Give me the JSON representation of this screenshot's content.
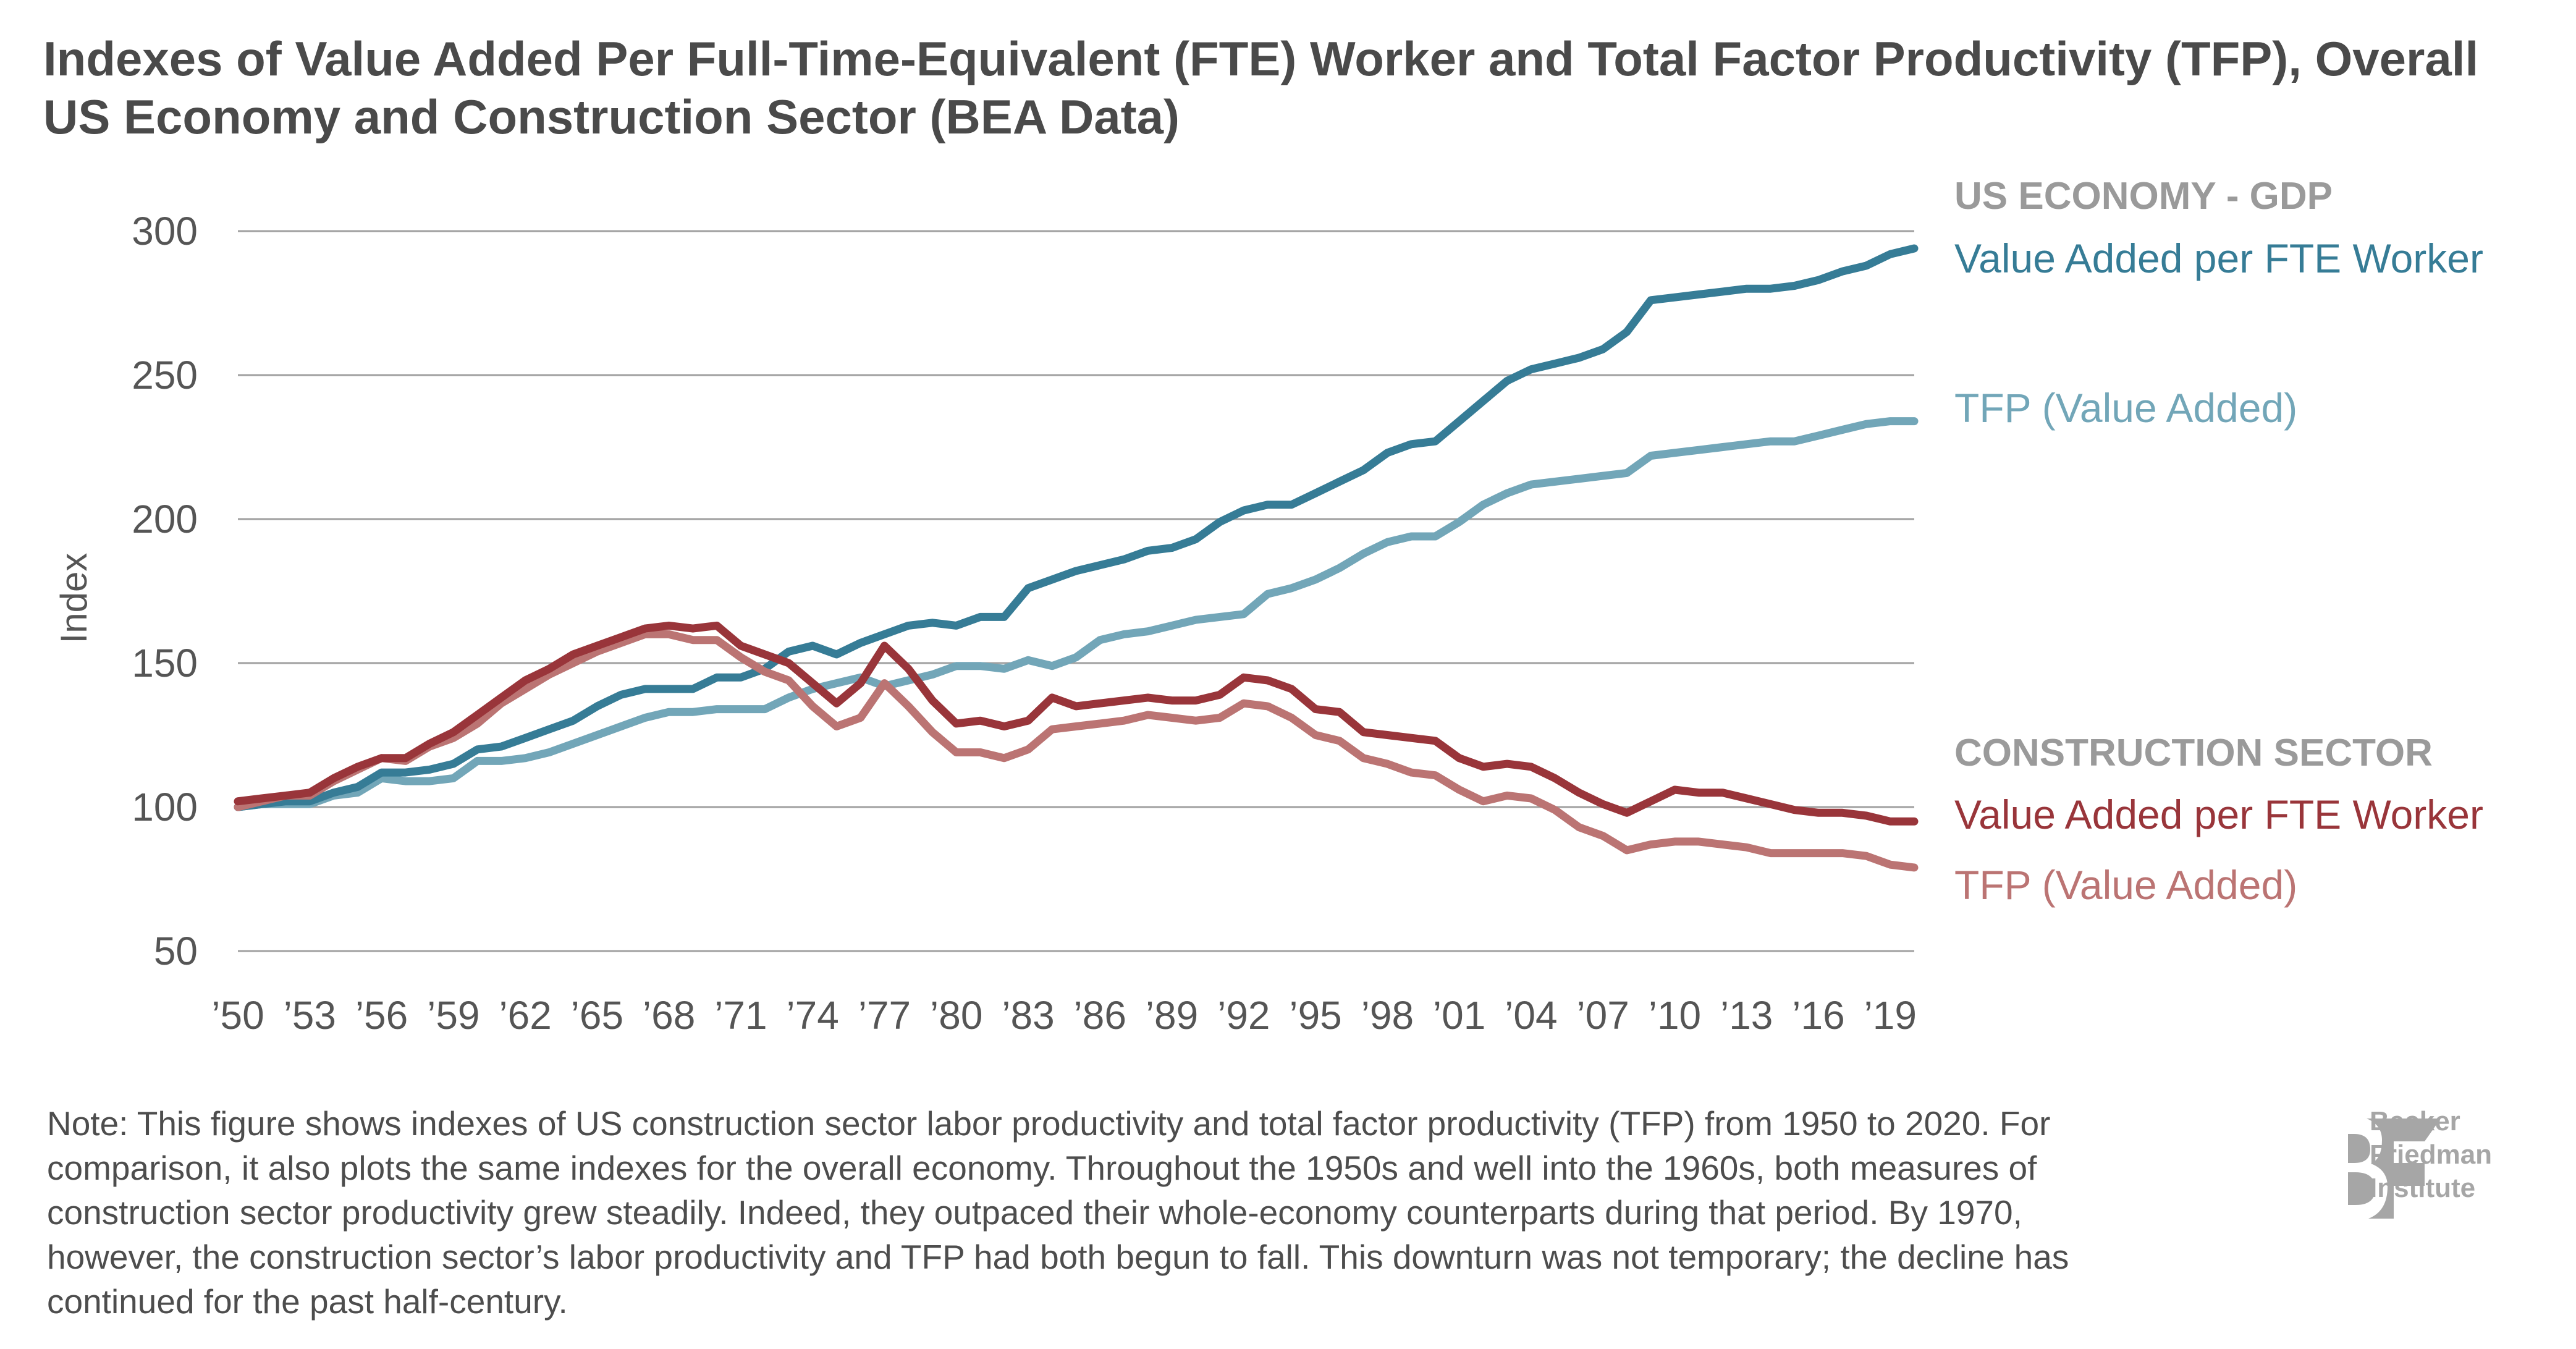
{
  "chart_data": {
    "type": "line",
    "title": "Indexes of Value Added Per Full-Time-Equivalent (FTE) Worker and Total Factor Productivity (TFP), Overall US Economy and Construction Sector (BEA Data)",
    "xlabel": "",
    "ylabel": "Index",
    "ylim": [
      50,
      300
    ],
    "xlim": [
      1950,
      2020
    ],
    "grid": true,
    "y_ticks": [
      "300",
      "250",
      "200",
      "150",
      "100",
      "50"
    ],
    "y_tick_values": [
      300,
      250,
      200,
      150,
      100,
      50
    ],
    "x_ticks": [
      "’50",
      "’53",
      "’56",
      "’59",
      "’62",
      "’65",
      "’68",
      "’71",
      "’74",
      "’77",
      "’80",
      "’83",
      "’86",
      "’89",
      "’92",
      "’95",
      "’98",
      "’01",
      "’04",
      "’07",
      "’10",
      "’13",
      "’16",
      "’19"
    ],
    "x_tick_values": [
      1950,
      1953,
      1956,
      1959,
      1962,
      1965,
      1968,
      1971,
      1974,
      1977,
      1980,
      1983,
      1986,
      1989,
      1992,
      1995,
      1998,
      2001,
      2004,
      2007,
      2010,
      2013,
      2016,
      2019
    ],
    "x": [
      1950,
      1951,
      1952,
      1953,
      1954,
      1955,
      1956,
      1957,
      1958,
      1959,
      1960,
      1961,
      1962,
      1963,
      1964,
      1965,
      1966,
      1967,
      1968,
      1969,
      1970,
      1971,
      1972,
      1973,
      1974,
      1975,
      1976,
      1977,
      1978,
      1979,
      1980,
      1981,
      1982,
      1983,
      1984,
      1985,
      1986,
      1987,
      1988,
      1989,
      1990,
      1991,
      1992,
      1993,
      1994,
      1995,
      1996,
      1997,
      1998,
      1999,
      2000,
      2001,
      2002,
      2003,
      2004,
      2005,
      2006,
      2007,
      2008,
      2009,
      2010,
      2011,
      2012,
      2013,
      2014,
      2015,
      2016,
      2017,
      2018,
      2019,
      2020
    ],
    "series": [
      {
        "name": "US Economy - Value Added per FTE Worker",
        "group": "US ECONOMY - GDP",
        "color": "#367c96",
        "values": [
          100,
          101,
          102,
          102,
          105,
          107,
          112,
          112,
          113,
          115,
          120,
          121,
          124,
          127,
          130,
          135,
          139,
          141,
          141,
          141,
          145,
          145,
          148,
          154,
          156,
          153,
          157,
          160,
          163,
          164,
          163,
          166,
          166,
          176,
          179,
          182,
          184,
          186,
          189,
          190,
          193,
          199,
          203,
          205,
          205,
          209,
          213,
          217,
          223,
          226,
          227,
          234,
          241,
          248,
          252,
          254,
          256,
          259,
          265,
          276,
          277,
          278,
          279,
          280,
          280,
          281,
          283,
          286,
          288,
          292,
          294
        ]
      },
      {
        "name": "US Economy - TFP (Value Added)",
        "group": "US ECONOMY - GDP",
        "color": "#72a6b8",
        "values": [
          100,
          101,
          101,
          101,
          104,
          105,
          110,
          109,
          109,
          110,
          116,
          116,
          117,
          119,
          122,
          125,
          128,
          131,
          133,
          133,
          134,
          134,
          134,
          138,
          141,
          143,
          145,
          142,
          144,
          146,
          149,
          149,
          148,
          151,
          149,
          152,
          158,
          160,
          161,
          163,
          165,
          166,
          167,
          174,
          176,
          179,
          183,
          188,
          192,
          194,
          194,
          199,
          205,
          209,
          212,
          213,
          214,
          215,
          216,
          222,
          223,
          224,
          225,
          226,
          227,
          227,
          229,
          231,
          233,
          234,
          234
        ]
      },
      {
        "name": "Construction Sector - Value Added per FTE Worker",
        "group": "CONSTRUCTION SECTOR",
        "color": "#99353a",
        "values": [
          102,
          103,
          104,
          105,
          110,
          114,
          117,
          117,
          122,
          126,
          132,
          138,
          144,
          148,
          153,
          156,
          159,
          162,
          163,
          162,
          163,
          156,
          153,
          150,
          143,
          136,
          143,
          156,
          148,
          137,
          129,
          130,
          128,
          130,
          138,
          135,
          136,
          137,
          138,
          137,
          137,
          139,
          145,
          144,
          141,
          134,
          133,
          126,
          125,
          124,
          123,
          117,
          114,
          115,
          114,
          110,
          105,
          101,
          98,
          102,
          106,
          105,
          105,
          103,
          101,
          99,
          98,
          98,
          97,
          95,
          95
        ]
      },
      {
        "name": "Construction Sector - TFP (Value Added)",
        "group": "CONSTRUCTION SECTOR",
        "color": "#bb7473",
        "values": [
          100,
          102,
          104,
          104,
          109,
          113,
          117,
          116,
          121,
          124,
          129,
          136,
          141,
          146,
          150,
          154,
          157,
          160,
          160,
          158,
          158,
          152,
          147,
          144,
          135,
          128,
          131,
          143,
          135,
          126,
          119,
          119,
          117,
          120,
          127,
          128,
          129,
          130,
          132,
          131,
          130,
          131,
          136,
          135,
          131,
          125,
          123,
          117,
          115,
          112,
          111,
          106,
          102,
          104,
          103,
          99,
          93,
          90,
          85,
          87,
          88,
          88,
          87,
          86,
          84,
          84,
          84,
          84,
          83,
          80,
          79
        ]
      }
    ],
    "legend_placement": "right"
  },
  "legend": {
    "us_heading": "US ECONOMY - GDP",
    "us_va": "Value Added per FTE Worker",
    "us_tfp": "TFP (Value Added)",
    "con_heading": "CONSTRUCTION SECTOR",
    "con_va": "Value Added per FTE Worker",
    "con_tfp": "TFP (Value Added)"
  },
  "note": "Note: This figure shows indexes of US construction sector labor productivity and total factor productivity (TFP) from 1950 to 2020. For comparison, it also plots the same indexes for the overall economy. Throughout the 1950s and well into the 1960s, both measures of construction sector productivity grew steadily. Indeed, they outpaced their whole-economy counterparts during that period. By 1970, however, the construction sector’s labor productivity and TFP had both begun to fall. This downturn was not temporary; the decline has continued for the past half-century.",
  "logo": {
    "monogram": "BF",
    "line1": "Becker",
    "line2": "Friedman",
    "line3": "Institute",
    "color": "#a6a6a6"
  }
}
